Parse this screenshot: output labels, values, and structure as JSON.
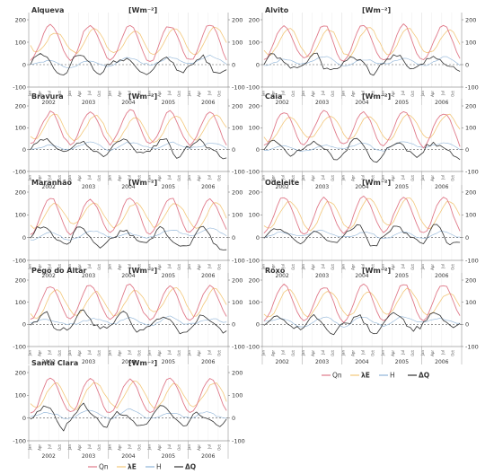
{
  "chart_data": {
    "type": "line",
    "unit": "[Wm⁻²]",
    "ylim": [
      -100,
      200
    ],
    "yticks": [
      "200",
      "100",
      "0",
      "-100"
    ],
    "years": [
      "2002",
      "2003",
      "2004",
      "2005",
      "2006"
    ],
    "months": [
      "Jan",
      "Apr",
      "Jul",
      "Oct"
    ],
    "series": [
      {
        "name": "Qn",
        "color": "#e07a8a"
      },
      {
        "name": "λE",
        "color": "#f3c77a"
      },
      {
        "name": "H",
        "color": "#8fb4d8"
      },
      {
        "name": "ΔQ",
        "color": "#333333"
      }
    ],
    "legend_bold": [
      "λE",
      "ΔQ"
    ],
    "reservoirs": [
      {
        "name": "Alqueva"
      },
      {
        "name": "Alvito"
      },
      {
        "name": "Bravura"
      },
      {
        "name": "Caia"
      },
      {
        "name": "Maranhão"
      },
      {
        "name": "Odeleite"
      },
      {
        "name": "Pego do Altar"
      },
      {
        "name": "Roxo"
      },
      {
        "name": "Santa Clara"
      }
    ],
    "typical_values": {
      "Qn_summer_peak": 175,
      "Qn_winter_min": 20,
      "lambdaE_summer_peak": 160,
      "lambdaE_winter_min": 40,
      "H_range": [
        -10,
        40
      ],
      "dQ_summer": -30,
      "dQ_winter": 40
    }
  }
}
